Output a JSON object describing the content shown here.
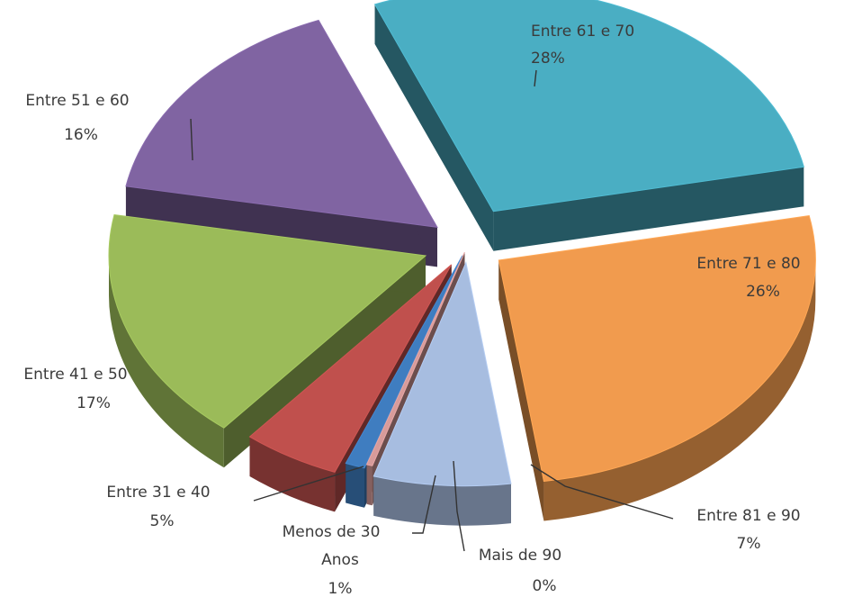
{
  "chart_data": {
    "type": "pie",
    "title": "",
    "legend": "none",
    "slices": [
      {
        "name": "Entre 61 e 70",
        "value": 28,
        "percent_label": "28%",
        "color": "#4aaec3"
      },
      {
        "name": "Entre 71 e 80",
        "value": 26,
        "percent_label": "26%",
        "color": "#f19b4e"
      },
      {
        "name": "Entre 81 e 90",
        "value": 7,
        "percent_label": "7%",
        "color": "#a7bde0"
      },
      {
        "name": "Mais de 90",
        "value": 0.3,
        "percent_label": "0%",
        "color": "#d79b9a"
      },
      {
        "name": "Menos de 30 Anos",
        "value": 1,
        "percent_label": "1%",
        "color": "#3f7dc0"
      },
      {
        "name": "Entre 31 e 40",
        "value": 5,
        "percent_label": "5%",
        "color": "#c0504d"
      },
      {
        "name": "Entre 41 e 50",
        "value": 17,
        "percent_label": "17%",
        "color": "#9bbb59"
      },
      {
        "name": "Entre 51 e 60",
        "value": 16,
        "percent_label": "16%",
        "color": "#8064a2"
      }
    ]
  }
}
